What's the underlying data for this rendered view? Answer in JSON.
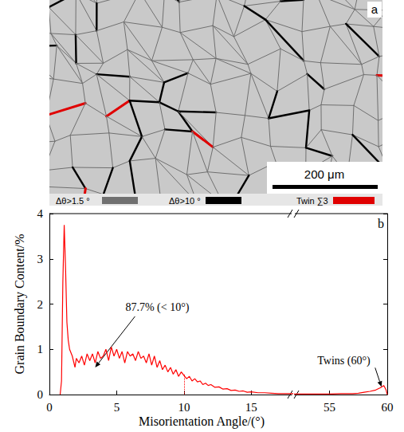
{
  "micrograph": {
    "letter": "a",
    "type": "image",
    "scale_bar": "200 μm",
    "legend": [
      {
        "label": "Δθ>1.5 °",
        "color": "#707070"
      },
      {
        "label": "Δθ>10 °",
        "color": "#000000"
      },
      {
        "label": "Twin ∑3",
        "color": "#e00000"
      }
    ]
  },
  "chart_data": {
    "type": "line",
    "letter": "b",
    "x_label": "Misorientation Angle/(°)",
    "y_label": "Grain Boundary Content/%",
    "color": "#ff0000",
    "x_segments": [
      {
        "xlim": [
          0,
          18
        ],
        "xticks": [
          0,
          5,
          10,
          15
        ]
      },
      {
        "xlim": [
          52,
          60
        ],
        "xticks": [
          55,
          60
        ]
      }
    ],
    "ylim": [
      0,
      4
    ],
    "yticks": [
      0,
      1,
      2,
      3,
      4
    ],
    "x": [
      0.8,
      0.9,
      1.0,
      1.1,
      1.2,
      1.3,
      1.4,
      1.5,
      1.7,
      1.9,
      2.0,
      2.2,
      2.4,
      2.6,
      2.8,
      3.0,
      3.2,
      3.4,
      3.6,
      3.8,
      4.0,
      4.2,
      4.4,
      4.6,
      4.8,
      5.0,
      5.2,
      5.4,
      5.6,
      5.8,
      6.0,
      6.2,
      6.4,
      6.6,
      6.8,
      7.0,
      7.2,
      7.4,
      7.6,
      7.8,
      8.0,
      8.2,
      8.4,
      8.6,
      8.8,
      9.0,
      9.2,
      9.4,
      9.6,
      9.8,
      10.0,
      10.2,
      10.4,
      10.6,
      10.8,
      11.0,
      11.2,
      11.4,
      11.6,
      11.8,
      12.0,
      12.3,
      12.6,
      12.9,
      13.2,
      13.5,
      13.8,
      14.1,
      14.4,
      14.7,
      15.0,
      15.5,
      16.0,
      16.5,
      17.0,
      17.5,
      18.0,
      52,
      53,
      54,
      55,
      56,
      57,
      57.5,
      58,
      58.5,
      59,
      59.4,
      59.7,
      59.9,
      60
    ],
    "values": [
      0,
      0.3,
      2.5,
      3.75,
      2.8,
      1.6,
      1.2,
      1.0,
      0.85,
      0.6,
      0.8,
      0.7,
      0.85,
      0.65,
      0.9,
      0.75,
      0.9,
      0.7,
      0.95,
      0.8,
      0.85,
      1.0,
      0.75,
      1.05,
      0.85,
      1.0,
      0.8,
      0.95,
      0.7,
      0.95,
      0.85,
      0.9,
      0.75,
      0.95,
      0.8,
      0.85,
      0.7,
      0.9,
      0.65,
      0.85,
      0.6,
      0.75,
      0.55,
      0.65,
      0.5,
      0.6,
      0.45,
      0.55,
      0.4,
      0.5,
      0.42,
      0.35,
      0.4,
      0.3,
      0.35,
      0.28,
      0.3,
      0.22,
      0.25,
      0.2,
      0.22,
      0.16,
      0.17,
      0.12,
      0.13,
      0.09,
      0.1,
      0.07,
      0.08,
      0.05,
      0.06,
      0.04,
      0.04,
      0.03,
      0.02,
      0.02,
      0.02,
      0.01,
      0.01,
      0.01,
      0.01,
      0.02,
      0.02,
      0.03,
      0.05,
      0.07,
      0.1,
      0.15,
      0.2,
      0.1,
      0
    ],
    "vline": {
      "x": 10,
      "y_from": 0,
      "y_to": 0.45,
      "line_style": "dotted"
    },
    "annotations": [
      {
        "text": "87.7% (< 10°)",
        "point": [
          3.4,
          0.6
        ]
      },
      {
        "text": "Twins (60°)",
        "point": [
          59.5,
          0.17
        ]
      }
    ],
    "grid": false
  }
}
